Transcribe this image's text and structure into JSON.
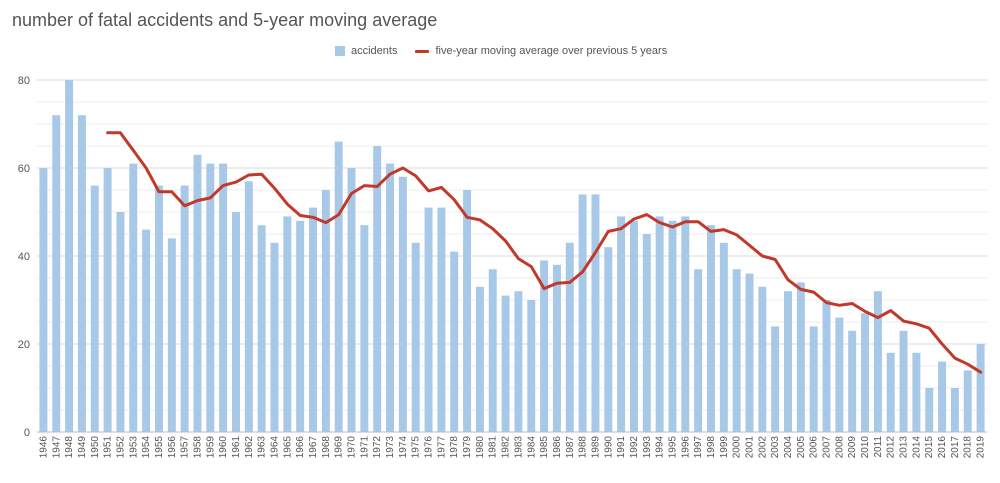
{
  "title": "number of fatal accidents and 5-year moving average",
  "chart_data": {
    "type": "bar",
    "title": "number of fatal accidents and 5-year moving average",
    "xlabel": "",
    "ylabel": "",
    "ylim": [
      0,
      80
    ],
    "yticks": [
      0,
      20,
      40,
      60,
      80
    ],
    "grid": true,
    "legend_position": "top-center",
    "categories": [
      "1946",
      "1947",
      "1948",
      "1949",
      "1950",
      "1951",
      "1952",
      "1953",
      "1954",
      "1955",
      "1956",
      "1957",
      "1958",
      "1959",
      "1960",
      "1961",
      "1962",
      "1963",
      "1964",
      "1965",
      "1966",
      "1967",
      "1968",
      "1969",
      "1970",
      "1971",
      "1972",
      "1973",
      "1974",
      "1975",
      "1976",
      "1977",
      "1978",
      "1979",
      "1980",
      "1981",
      "1982",
      "1983",
      "1984",
      "1985",
      "1986",
      "1987",
      "1988",
      "1989",
      "1990",
      "1991",
      "1992",
      "1993",
      "1994",
      "1995",
      "1996",
      "1997",
      "1998",
      "1999",
      "2000",
      "2001",
      "2002",
      "2003",
      "2004",
      "2005",
      "2006",
      "2007",
      "2008",
      "2009",
      "2010",
      "2011",
      "2012",
      "2013",
      "2014",
      "2015",
      "2016",
      "2017",
      "2018",
      "2019"
    ],
    "series": [
      {
        "name": "accidents",
        "type": "bar",
        "color": "#a8c8e8",
        "values": [
          60,
          72,
          80,
          72,
          56,
          60,
          50,
          61,
          46,
          56,
          44,
          56,
          63,
          61,
          61,
          50,
          57,
          47,
          43,
          49,
          48,
          51,
          55,
          66,
          60,
          47,
          65,
          61,
          58,
          43,
          51,
          51,
          41,
          55,
          33,
          37,
          31,
          32,
          30,
          39,
          38,
          43,
          54,
          54,
          42,
          49,
          48,
          45,
          49,
          48,
          49,
          37,
          47,
          43,
          37,
          36,
          33,
          24,
          32,
          34,
          24,
          30,
          26,
          23,
          27,
          32,
          18,
          23,
          18,
          10,
          16,
          10,
          14,
          20
        ]
      },
      {
        "name": "five-year moving average over previous 5 years",
        "type": "line",
        "color": "#c0392b",
        "values": [
          null,
          null,
          null,
          null,
          null,
          68,
          68,
          64,
          60,
          54.6,
          54.6,
          51.4,
          52.6,
          53.2,
          56,
          56.8,
          58.4,
          58.6,
          55.4,
          51.8,
          49.2,
          48.8,
          47.6,
          49.4,
          54.2,
          56,
          55.8,
          58.6,
          60,
          58.2,
          54.8,
          55.6,
          52.8,
          48.8,
          48.2,
          46.2,
          43.4,
          39.4,
          37.6,
          32.6,
          33.8,
          34,
          36.4,
          40.8,
          45.6,
          46.2,
          48.4,
          49.4,
          47.6,
          46.6,
          47.8,
          47.8,
          45.6,
          46,
          44.8,
          42.4,
          40,
          39.2,
          34.6,
          32.4,
          31.8,
          29.4,
          28.8,
          29.2,
          27.4,
          26,
          27.6,
          25.2,
          24.6,
          23.6,
          20,
          16.8,
          15.4,
          13.6
        ]
      }
    ]
  }
}
